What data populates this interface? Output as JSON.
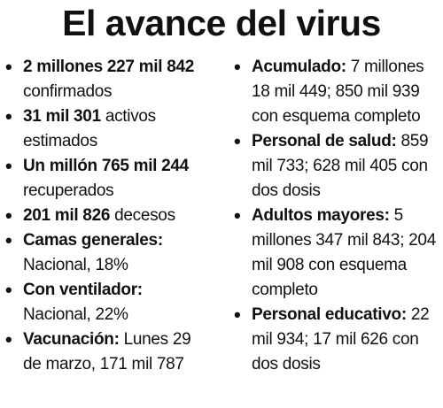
{
  "title": "El avance del virus",
  "left_items": [
    {
      "bold": "2 millones 227 mil 842",
      "text": " confirmados"
    },
    {
      "bold": "31 mil 301",
      "text": " activos estimados"
    },
    {
      "bold": "Un millón 765 mil 244",
      "text": " recuperados"
    },
    {
      "bold": "201 mil 826",
      "text": " decesos"
    },
    {
      "bold": "Camas generales:",
      "text": " Nacional, 18%"
    },
    {
      "bold": "Con ventilador:",
      "text": " Nacional, 22%"
    },
    {
      "bold": "Vacunación:",
      "text": " Lunes 29 de marzo, 171 mil 787"
    }
  ],
  "right_items": [
    {
      "bold": "Acumulado:",
      "text": " 7 millones 18 mil 449; 850 mil 939 con esquema completo"
    },
    {
      "bold": "Personal de salud:",
      "text": " 859 mil 733; 628 mil 405 con dos dosis"
    },
    {
      "bold": "Adultos mayores:",
      "text": " 5 millones 347 mil 843; 204 mil 908 con esquema completo"
    },
    {
      "bold": "Personal educativo:",
      "text": " 22 mil 934; 17 mil 626 con dos dosis"
    }
  ]
}
